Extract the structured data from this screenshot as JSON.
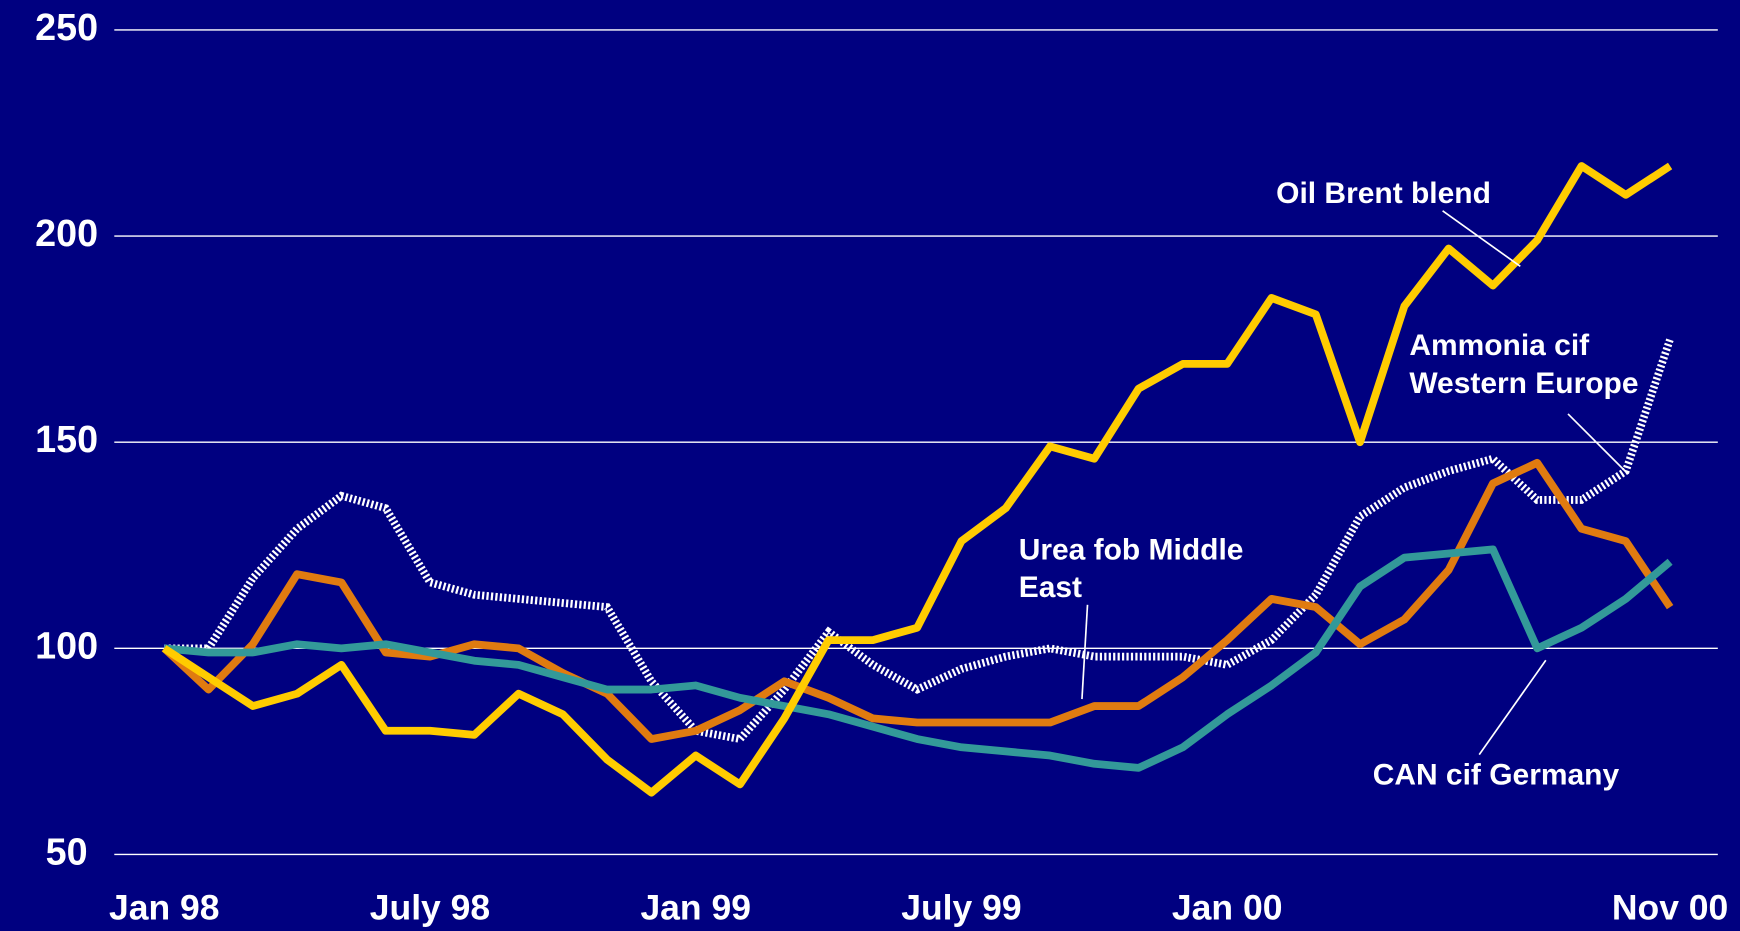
{
  "chart_data": {
    "type": "line",
    "categories": [
      "Jan 98",
      null,
      null,
      null,
      null,
      null,
      "July 98",
      null,
      null,
      null,
      null,
      null,
      "Jan 99",
      null,
      null,
      null,
      null,
      null,
      "July 99",
      null,
      null,
      null,
      null,
      null,
      "Jan 00",
      null,
      null,
      null,
      null,
      null,
      null,
      null,
      null,
      null,
      "Nov 00"
    ],
    "series": [
      {
        "name": "Oil Brent blend",
        "color": "#ffcc00",
        "values": [
          100,
          93,
          86,
          89,
          96,
          80,
          80,
          79,
          89,
          84,
          73,
          65,
          74,
          67,
          83,
          102,
          102,
          105,
          126,
          134,
          149,
          146,
          163,
          169,
          169,
          185,
          181,
          150,
          183,
          197,
          188,
          199,
          217,
          210,
          217
        ]
      },
      {
        "name": "Urea fob Middle East",
        "color": "#e07b10",
        "values": [
          100,
          90,
          101,
          118,
          116,
          99,
          98,
          101,
          100,
          94,
          89,
          78,
          80,
          85,
          92,
          88,
          83,
          82,
          82,
          82,
          82,
          86,
          86,
          93,
          102,
          112,
          110,
          101,
          107,
          119,
          140,
          145,
          129,
          126,
          110
        ]
      },
      {
        "name": "Ammonia cif Western Europe",
        "color": "#ffffff",
        "values": [
          100,
          100,
          117,
          129,
          137,
          134,
          116,
          113,
          112,
          111,
          110,
          92,
          80,
          78,
          90,
          104,
          96,
          90,
          95,
          98,
          100,
          98,
          98,
          98,
          96,
          102,
          113,
          132,
          139,
          143,
          146,
          136,
          136,
          143,
          175
        ]
      },
      {
        "name": "CAN cif Germany",
        "color": "#339999",
        "values": [
          100,
          99,
          99,
          101,
          100,
          101,
          99,
          97,
          96,
          93,
          90,
          90,
          91,
          88,
          86,
          84,
          81,
          78,
          76,
          75,
          74,
          72,
          71,
          76,
          84,
          91,
          99,
          115,
          122,
          123,
          124,
          100,
          105,
          112,
          121
        ]
      }
    ],
    "ylim": [
      50,
      250
    ],
    "yticks": [
      50,
      100,
      150,
      200,
      250
    ],
    "grid": true
  }
}
